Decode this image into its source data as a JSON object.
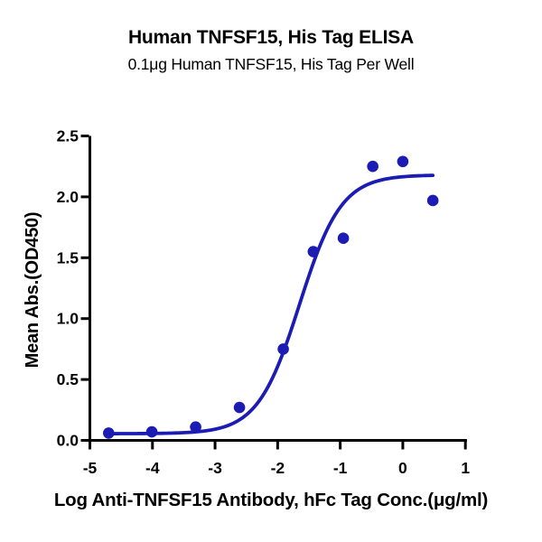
{
  "chart_data": {
    "type": "scatter",
    "title": "Human TNFSF15, His Tag ELISA",
    "subtitle": "0.1μg Human TNFSF15, His Tag Per Well",
    "xlabel": "Log Anti-TNFSF15 Antibody, hFc Tag Conc.(μg/ml)",
    "ylabel": "Mean Abs.(OD450)",
    "xlim": [
      -5,
      1
    ],
    "ylim": [
      0,
      2.5
    ],
    "x_ticks": [
      -5,
      -4,
      -3,
      -2,
      -1,
      0,
      1
    ],
    "x_tick_labels": [
      "-5",
      "-4",
      "-3",
      "-2",
      "-1",
      "0",
      "1"
    ],
    "y_ticks": [
      0,
      0.5,
      1,
      1.5,
      2,
      2.5
    ],
    "y_tick_labels": [
      "0.0",
      "0.5",
      "1.0",
      "1.5",
      "2.0",
      "2.5"
    ],
    "grid": false,
    "legend": "none",
    "series": [
      {
        "name": "Human TNFSF15, His Tag",
        "color": "#1c1cb4",
        "points": [
          {
            "x": -4.7,
            "y": 0.06
          },
          {
            "x": -4.01,
            "y": 0.07
          },
          {
            "x": -3.31,
            "y": 0.11
          },
          {
            "x": -2.61,
            "y": 0.27
          },
          {
            "x": -1.91,
            "y": 0.75
          },
          {
            "x": -1.43,
            "y": 1.55
          },
          {
            "x": -0.95,
            "y": 1.66
          },
          {
            "x": -0.48,
            "y": 2.25
          },
          {
            "x": 0.0,
            "y": 2.29
          },
          {
            "x": 0.48,
            "y": 1.97
          }
        ]
      }
    ],
    "fit_curve": {
      "model": "4PL",
      "bottom": 0.055,
      "top": 2.18,
      "log_ec50": -1.65,
      "hill_slope": 1.3,
      "x_start": -4.7,
      "x_end": 0.48
    },
    "colors": {
      "accent": "#1c1cb4",
      "axis": "#000000",
      "text": "#000000",
      "background": "#ffffff"
    }
  }
}
